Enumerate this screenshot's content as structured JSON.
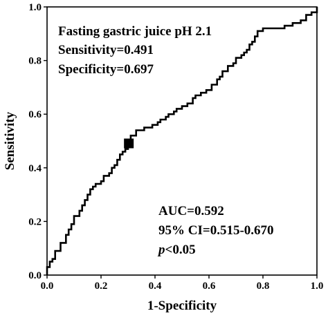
{
  "chart_data": {
    "type": "line",
    "xlabel": "1-Specificity",
    "ylabel": "Sensitivity",
    "xlim": [
      0.0,
      1.0
    ],
    "ylim": [
      0.0,
      1.0
    ],
    "x_ticks": [
      "0.0",
      "0.2",
      "0.4",
      "0.6",
      "0.8",
      "1.0"
    ],
    "y_ticks": [
      "0.0",
      "0.2",
      "0.4",
      "0.6",
      "0.8",
      "1.0"
    ],
    "grid": false,
    "annotations_top": [
      "Fasting gastric juice pH 2.1",
      "Sensitivity=0.491",
      "Specificity=0.697"
    ],
    "annotations_bottom": {
      "auc": "AUC=0.592",
      "ci": "95% CI=0.515-0.670",
      "p_italic": "p",
      "p_rest": "<0.05"
    },
    "cutoff_point": {
      "x": 0.303,
      "y": 0.491
    },
    "series": [
      {
        "x": [
          0.0,
          0.0,
          0.01,
          0.01,
          0.02,
          0.02,
          0.03,
          0.03,
          0.05,
          0.05,
          0.07,
          0.07,
          0.08,
          0.08,
          0.09,
          0.09,
          0.1,
          0.1,
          0.12,
          0.12,
          0.13,
          0.13,
          0.14,
          0.14,
          0.15,
          0.15,
          0.16,
          0.16,
          0.17,
          0.17,
          0.18,
          0.18,
          0.2,
          0.2,
          0.21,
          0.21,
          0.23,
          0.23,
          0.24,
          0.24,
          0.25,
          0.25,
          0.26,
          0.26,
          0.27,
          0.27,
          0.28,
          0.28,
          0.29,
          0.29,
          0.3,
          0.3,
          0.303,
          0.31,
          0.31,
          0.33,
          0.33,
          0.36,
          0.36,
          0.39,
          0.39,
          0.41,
          0.41,
          0.42,
          0.42,
          0.44,
          0.44,
          0.45,
          0.45,
          0.47,
          0.47,
          0.48,
          0.48,
          0.5,
          0.5,
          0.52,
          0.52,
          0.54,
          0.54,
          0.55,
          0.55,
          0.57,
          0.57,
          0.59,
          0.59,
          0.61,
          0.61,
          0.63,
          0.63,
          0.64,
          0.64,
          0.65,
          0.65,
          0.67,
          0.67,
          0.69,
          0.69,
          0.7,
          0.7,
          0.72,
          0.72,
          0.73,
          0.73,
          0.74,
          0.74,
          0.75,
          0.75,
          0.76,
          0.76,
          0.77,
          0.77,
          0.78,
          0.78,
          0.8,
          0.8,
          0.88,
          0.88,
          0.91,
          0.91,
          0.94,
          0.94,
          0.96,
          0.96,
          0.98,
          0.98,
          1.0,
          1.0
        ],
        "y": [
          0.0,
          0.03,
          0.03,
          0.05,
          0.05,
          0.06,
          0.06,
          0.09,
          0.09,
          0.12,
          0.12,
          0.15,
          0.15,
          0.17,
          0.17,
          0.19,
          0.19,
          0.22,
          0.22,
          0.24,
          0.24,
          0.26,
          0.26,
          0.28,
          0.28,
          0.3,
          0.3,
          0.32,
          0.32,
          0.33,
          0.33,
          0.34,
          0.34,
          0.35,
          0.35,
          0.37,
          0.37,
          0.38,
          0.38,
          0.4,
          0.4,
          0.41,
          0.41,
          0.43,
          0.43,
          0.45,
          0.45,
          0.46,
          0.46,
          0.47,
          0.47,
          0.48,
          0.491,
          0.5,
          0.52,
          0.52,
          0.54,
          0.54,
          0.55,
          0.55,
          0.56,
          0.56,
          0.57,
          0.57,
          0.58,
          0.58,
          0.59,
          0.59,
          0.6,
          0.6,
          0.61,
          0.61,
          0.62,
          0.62,
          0.63,
          0.63,
          0.64,
          0.64,
          0.66,
          0.66,
          0.67,
          0.67,
          0.68,
          0.68,
          0.69,
          0.69,
          0.71,
          0.71,
          0.73,
          0.73,
          0.74,
          0.74,
          0.76,
          0.76,
          0.78,
          0.78,
          0.79,
          0.79,
          0.81,
          0.81,
          0.82,
          0.82,
          0.83,
          0.83,
          0.84,
          0.84,
          0.86,
          0.86,
          0.87,
          0.87,
          0.89,
          0.89,
          0.91,
          0.91,
          0.92,
          0.92,
          0.93,
          0.93,
          0.94,
          0.94,
          0.95,
          0.95,
          0.97,
          0.97,
          0.98,
          0.98,
          1.0
        ]
      }
    ]
  }
}
